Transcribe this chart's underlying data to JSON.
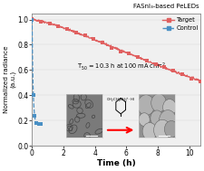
{
  "title": "FASnI₃-based PeLEDs",
  "xlabel": "Time (h)",
  "ylabel": "Normalized radiance\n(a.u.)",
  "xlim": [
    0,
    10.7
  ],
  "ylim": [
    0.0,
    1.05
  ],
  "yticks": [
    0.0,
    0.2,
    0.4,
    0.6,
    0.8,
    1.0
  ],
  "xticks": [
    0,
    2,
    4,
    6,
    8,
    10
  ],
  "annotation": "T$_{50}$ = 10.3 h at 100 mA cm$^{-2}$",
  "target_color": "#e06060",
  "control_color": "#4a90c4",
  "background_color": "#f0f0f0",
  "legend_target": "Target",
  "legend_control": "Control",
  "mol_label": "CH₂CH₂NH₃⁺ · HI"
}
